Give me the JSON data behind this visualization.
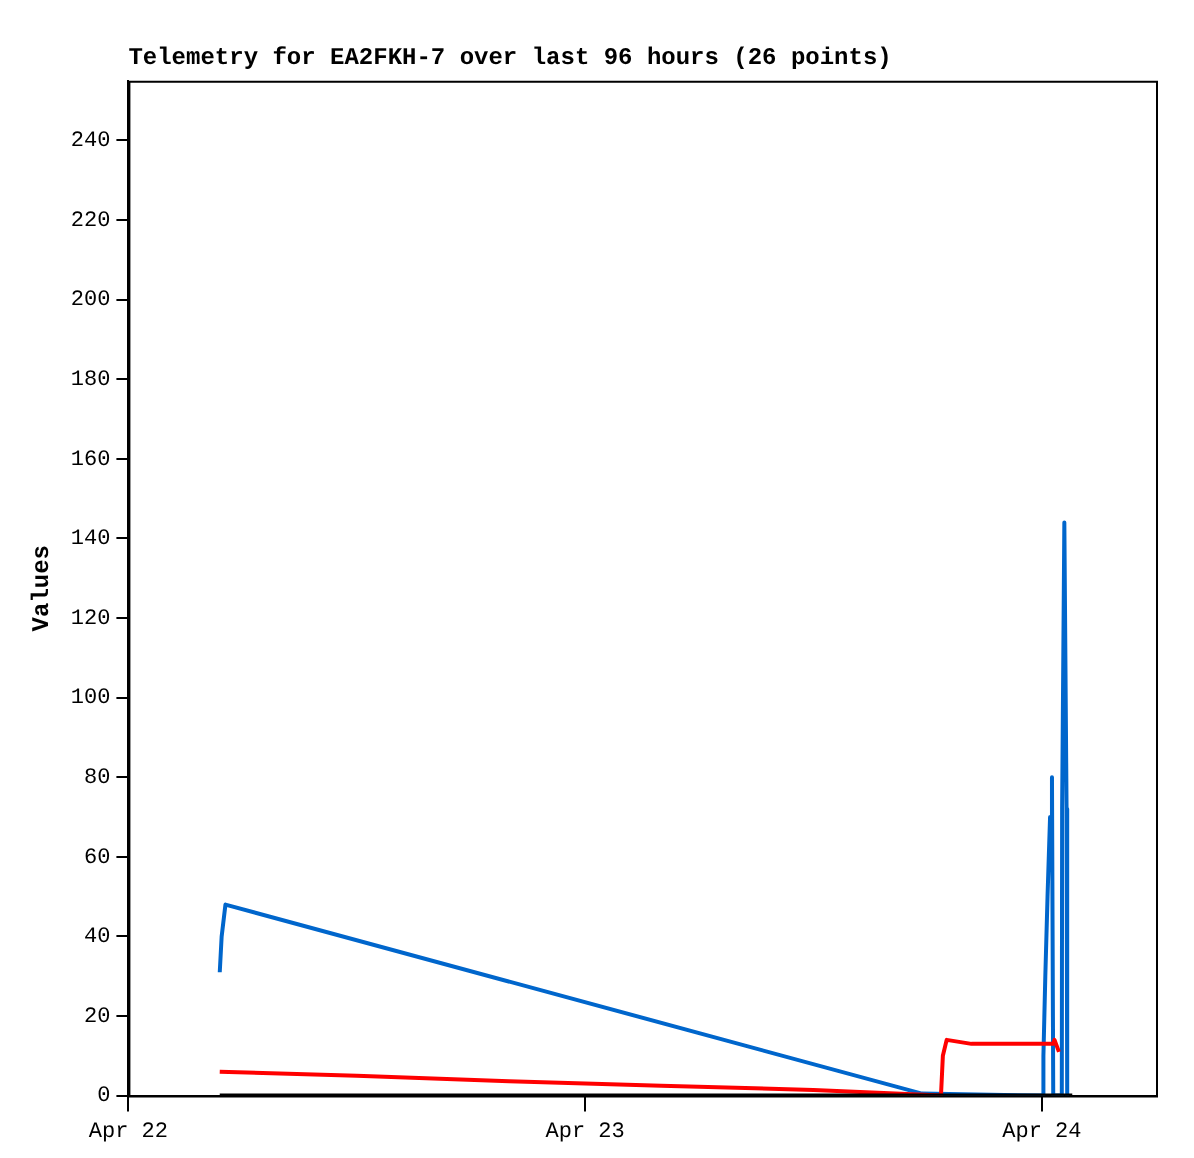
{
  "chart_data": {
    "type": "line",
    "title": "Telemetry for EA2FKH-7 over last 96 hours (26 points)",
    "ylabel": "Values",
    "xlim": [
      "--04-22T00:00",
      "--04-24T06:00"
    ],
    "xticks": [
      {
        "value": "--04-22T00:00",
        "label": "Apr 22"
      },
      {
        "value": "--04-23T00:00",
        "label": "Apr 23"
      },
      {
        "value": "--04-24T00:00",
        "label": "Apr 24"
      }
    ],
    "ylim": [
      0,
      255
    ],
    "yticks": [
      0,
      20,
      40,
      60,
      80,
      100,
      120,
      140,
      160,
      180,
      200,
      220,
      240
    ],
    "grid": false,
    "legend": false,
    "marker": "none",
    "line_style": "solid",
    "series": [
      {
        "color": "#000000",
        "x": [
          "--04-22T04:48",
          "--04-24T01:36"
        ],
        "values": [
          0,
          0
        ]
      },
      {
        "color": "#ff0000",
        "x": [
          "--04-22T04:48",
          "--04-22T12:00",
          "--04-22T20:00",
          "--04-23T04:00",
          "--04-23T12:00",
          "--04-23T16:18",
          "--04-23T18:42",
          "--04-23T18:48",
          "--04-23T19:00",
          "--04-23T20:18",
          "--04-24T00:36",
          "--04-24T00:40",
          "--04-24T00:54"
        ],
        "values": [
          6,
          5,
          3.6,
          2.5,
          1.4,
          0.5,
          0,
          10,
          14,
          13,
          13,
          14,
          11
        ]
      },
      {
        "color": "#0066cc",
        "x": [
          "--04-22T04:48",
          "--04-22T04:54",
          "--04-22T05:06",
          "--04-23T17:42",
          "--04-24T00:04",
          "--04-24T00:05",
          "--04-24T00:11",
          "--04-24T00:18",
          "--04-24T00:26",
          "--04-24T00:32",
          "--04-24T00:36",
          "--04-24T01:03",
          "--04-24T01:04",
          "--04-24T01:11",
          "--04-24T01:18",
          "--04-24T01:20"
        ],
        "values": [
          31,
          40,
          48,
          0.5,
          0,
          10,
          30,
          50,
          70,
          80,
          0,
          0,
          72,
          144,
          72,
          0
        ]
      }
    ]
  }
}
